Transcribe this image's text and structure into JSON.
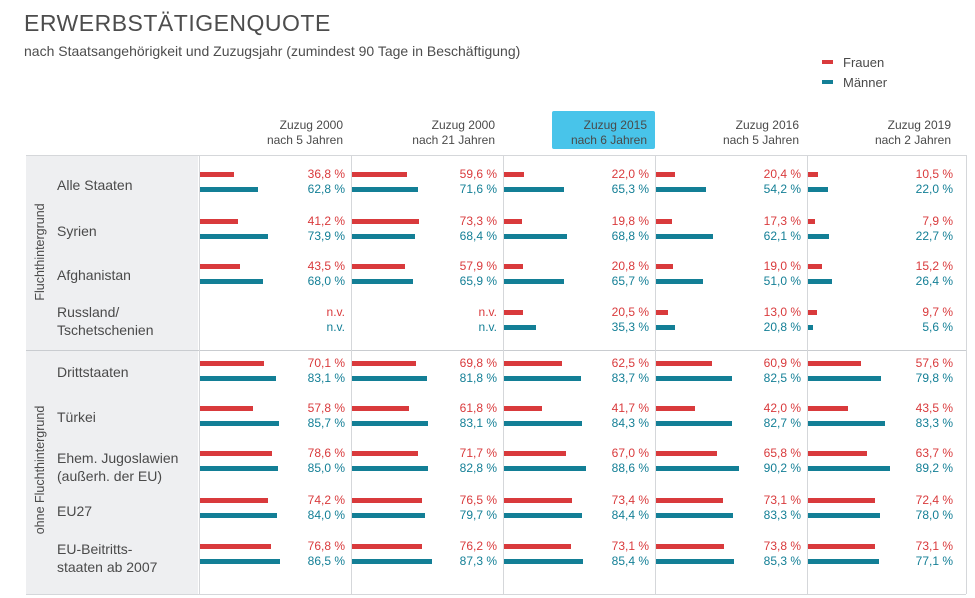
{
  "title": "ERWERBSTÄTIGENQUOTE",
  "subtitle": "nach Staatsangehörigkeit und Zuzugsjahr (zumindest 90 Tage in Beschäftigung)",
  "legend": [
    {
      "name": "Frauen",
      "color": "#d93a3c"
    },
    {
      "name": "Männer",
      "color": "#137f96"
    }
  ],
  "columns": [
    {
      "line1": "Zuzug 2000",
      "line2": "nach 5 Jahren",
      "highlighted": false
    },
    {
      "line1": "Zuzug 2000",
      "line2": "nach 21 Jahren",
      "highlighted": false
    },
    {
      "line1": "Zuzug 2015",
      "line2": "nach 6 Jahren",
      "highlighted": true
    },
    {
      "line1": "Zuzug 2016",
      "line2": "nach 5 Jahren",
      "highlighted": false
    },
    {
      "line1": "Zuzug 2019",
      "line2": "nach 2 Jahren",
      "highlighted": false
    }
  ],
  "groups": [
    {
      "label": "Fluchthintergrund"
    },
    {
      "label": "ohne Fluchthintergrund"
    }
  ],
  "rows": [
    {
      "group": 0,
      "label": [
        "Alle Staaten"
      ],
      "frauen": [
        36.8,
        59.6,
        22.0,
        20.4,
        10.5
      ],
      "maenner": [
        62.8,
        71.6,
        65.3,
        54.2,
        22.0
      ],
      "frauen_text": [
        "36,8 %",
        "59,6 %",
        "22,0 %",
        "20,4 %",
        "10,5 %"
      ],
      "maenner_text": [
        "62,8 %",
        "71,6 %",
        "65,3 %",
        "54,2 %",
        "22,0 %"
      ]
    },
    {
      "group": 0,
      "label": [
        "Syrien"
      ],
      "frauen": [
        41.2,
        73.3,
        19.8,
        17.3,
        7.9
      ],
      "maenner": [
        73.9,
        68.4,
        68.8,
        62.1,
        22.7
      ],
      "frauen_text": [
        "41,2 %",
        "73,3 %",
        "19,8 %",
        "17,3 %",
        "7,9 %"
      ],
      "maenner_text": [
        "73,9 %",
        "68,4 %",
        "68,8 %",
        "62,1 %",
        "22,7 %"
      ]
    },
    {
      "group": 0,
      "label": [
        "Afghanistan"
      ],
      "frauen": [
        43.5,
        57.9,
        20.8,
        19.0,
        15.2
      ],
      "maenner": [
        68.0,
        65.9,
        65.7,
        51.0,
        26.4
      ],
      "frauen_text": [
        "43,5 %",
        "57,9 %",
        "20,8 %",
        "19,0 %",
        "15,2 %"
      ],
      "maenner_text": [
        "68,0 %",
        "65,9 %",
        "65,7 %",
        "51,0 %",
        "26,4 %"
      ]
    },
    {
      "group": 0,
      "label": [
        "Russland/",
        "Tschetschenien"
      ],
      "frauen": [
        null,
        null,
        20.5,
        13.0,
        9.7
      ],
      "maenner": [
        null,
        null,
        35.3,
        20.8,
        5.6
      ],
      "frauen_text": [
        "n.v.",
        "n.v.",
        "20,5 %",
        "13,0 %",
        "9,7 %"
      ],
      "maenner_text": [
        "n.v.",
        "n.v.",
        "35,3 %",
        "20,8 %",
        "5,6 %"
      ]
    },
    {
      "group": 1,
      "label": [
        "Drittstaaten"
      ],
      "frauen": [
        70.1,
        69.8,
        62.5,
        60.9,
        57.6
      ],
      "maenner": [
        83.1,
        81.8,
        83.7,
        82.5,
        79.8
      ],
      "frauen_text": [
        "70,1 %",
        "69,8 %",
        "62,5 %",
        "60,9 %",
        "57,6 %"
      ],
      "maenner_text": [
        "83,1 %",
        "81,8 %",
        "83,7 %",
        "82,5 %",
        "79,8 %"
      ]
    },
    {
      "group": 1,
      "label": [
        "Türkei"
      ],
      "frauen": [
        57.8,
        61.8,
        41.7,
        42.0,
        43.5
      ],
      "maenner": [
        85.7,
        83.1,
        84.3,
        82.7,
        83.3
      ],
      "frauen_text": [
        "57,8 %",
        "61,8 %",
        "41,7 %",
        "42,0 %",
        "43,5 %"
      ],
      "maenner_text": [
        "85,7 %",
        "83,1 %",
        "84,3 %",
        "82,7 %",
        "83,3 %"
      ]
    },
    {
      "group": 1,
      "label": [
        "Ehem. Jugoslawien",
        "(außerh. der EU)"
      ],
      "frauen": [
        78.6,
        71.7,
        67.0,
        65.8,
        63.7
      ],
      "maenner": [
        85.0,
        82.8,
        88.6,
        90.2,
        89.2
      ],
      "frauen_text": [
        "78,6 %",
        "71,7 %",
        "67,0 %",
        "65,8 %",
        "63,7 %"
      ],
      "maenner_text": [
        "85,0 %",
        "82,8 %",
        "88,6 %",
        "90,2 %",
        "89,2 %"
      ]
    },
    {
      "group": 1,
      "label": [
        "EU27"
      ],
      "frauen": [
        74.2,
        76.5,
        73.4,
        73.1,
        72.4
      ],
      "maenner": [
        84.0,
        79.7,
        84.4,
        83.3,
        78.0
      ],
      "frauen_text": [
        "74,2 %",
        "76,5 %",
        "73,4 %",
        "73,1 %",
        "72,4 %"
      ],
      "maenner_text": [
        "84,0 %",
        "79,7 %",
        "84,4 %",
        "83,3 %",
        "78,0 %"
      ]
    },
    {
      "group": 1,
      "label": [
        "EU-Beitritts-",
        "staaten ab 2007"
      ],
      "frauen": [
        76.8,
        76.2,
        73.1,
        73.8,
        73.1
      ],
      "maenner": [
        86.5,
        87.3,
        85.4,
        85.3,
        77.1
      ],
      "frauen_text": [
        "76,8 %",
        "76,2 %",
        "73,1 %",
        "73,8 %",
        "73,1 %"
      ],
      "maenner_text": [
        "86,5 %",
        "87,3 %",
        "85,4 %",
        "85,3 %",
        "77,1 %"
      ]
    }
  ],
  "chart_data": {
    "type": "bar",
    "title": "ERWERBSTÄTIGENQUOTE",
    "subtitle": "nach Staatsangehörigkeit und Zuzugsjahr (zumindest 90 Tage in Beschäftigung)",
    "categories": [
      "Alle Staaten",
      "Syrien",
      "Afghanistan",
      "Russland/Tschetschenien",
      "Drittstaaten",
      "Türkei",
      "Ehem. Jugoslawien (außerh. der EU)",
      "EU27",
      "EU-Beitrittsstaaten ab 2007"
    ],
    "panels": [
      "Zuzug 2000 nach 5 Jahren",
      "Zuzug 2000 nach 21 Jahren",
      "Zuzug 2015 nach 6 Jahren",
      "Zuzug 2016 nach 5 Jahren",
      "Zuzug 2019 nach 2 Jahren"
    ],
    "legend_position": "top-right",
    "unit": "%"
  }
}
